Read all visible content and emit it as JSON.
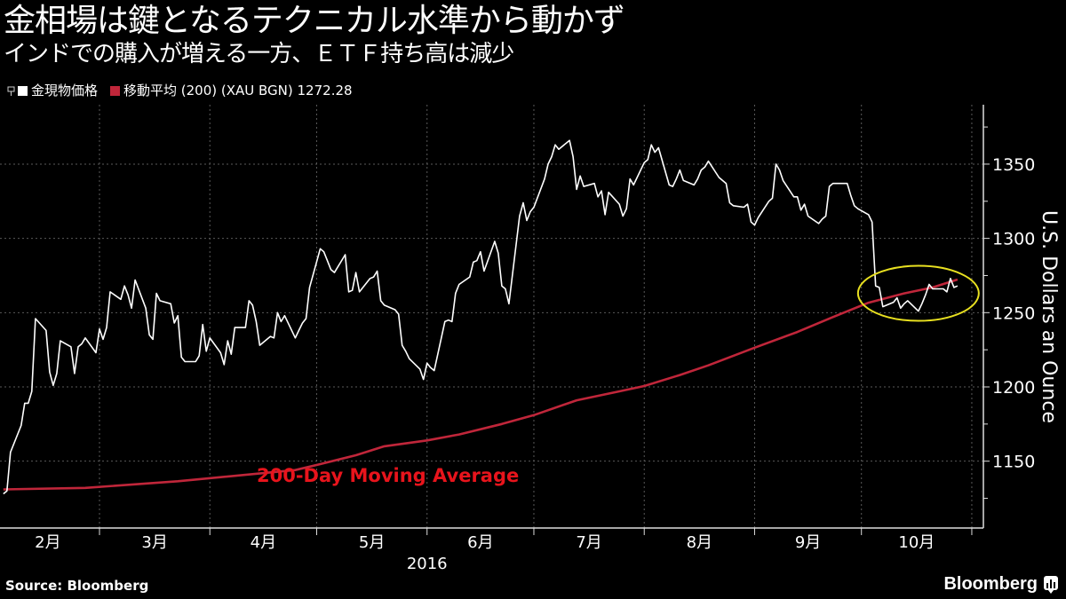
{
  "header": {
    "title": "金相場は鍵となるテクニカル水準から動かず",
    "subtitle": "インドでの購入が増える一方、ＥＴＦ持ち高は減少"
  },
  "legend": {
    "items": [
      {
        "label": "金現物価格",
        "color": "#ffffff"
      },
      {
        "label": "移動平均 (200) (XAU BGN) 1272.28",
        "color": "#c0263a"
      }
    ]
  },
  "footer": {
    "source": "Source: Bloomberg",
    "logo": "Bloomberg"
  },
  "chart_data": {
    "type": "line",
    "title": "金相場は鍵となるテクニカル水準から動かず",
    "subtitle": "インドでの購入が増える一方、ＥＴＦ持ち高は減少",
    "xlabel": "2016",
    "ylabel": "U.S. Dollars an Ounce",
    "x_tick_labels": [
      "2月",
      "3月",
      "4月",
      "5月",
      "6月",
      "7月",
      "8月",
      "9月",
      "10月"
    ],
    "y_ticks": [
      1150,
      1200,
      1250,
      1300,
      1350
    ],
    "y_tick_labels": [
      "1150",
      "1200",
      "1250",
      "1300",
      "1350"
    ],
    "ylim": [
      1105,
      1390
    ],
    "xlim": [
      "2016-02-02",
      "2016-11-01"
    ],
    "y_axis_side": "right",
    "grid": true,
    "legend_position": "top-left",
    "background": "#000000",
    "series": [
      {
        "name": "金現物価格",
        "color": "#ffffff",
        "dates": [
          "2016-02-03",
          "2016-02-04",
          "2016-02-05",
          "2016-02-08",
          "2016-02-09",
          "2016-02-10",
          "2016-02-11",
          "2016-02-12",
          "2016-02-15",
          "2016-02-16",
          "2016-02-17",
          "2016-02-18",
          "2016-02-19",
          "2016-02-22",
          "2016-02-23",
          "2016-02-24",
          "2016-02-25",
          "2016-02-26",
          "2016-02-29",
          "2016-03-01",
          "2016-03-02",
          "2016-03-03",
          "2016-03-04",
          "2016-03-07",
          "2016-03-08",
          "2016-03-09",
          "2016-03-10",
          "2016-03-11",
          "2016-03-14",
          "2016-03-15",
          "2016-03-16",
          "2016-03-17",
          "2016-03-18",
          "2016-03-21",
          "2016-03-22",
          "2016-03-23",
          "2016-03-24",
          "2016-03-25",
          "2016-03-28",
          "2016-03-29",
          "2016-03-30",
          "2016-03-31",
          "2016-04-01",
          "2016-04-04",
          "2016-04-05",
          "2016-04-06",
          "2016-04-07",
          "2016-04-08",
          "2016-04-11",
          "2016-04-12",
          "2016-04-13",
          "2016-04-14",
          "2016-04-15",
          "2016-04-18",
          "2016-04-19",
          "2016-04-20",
          "2016-04-21",
          "2016-04-22",
          "2016-04-25",
          "2016-04-26",
          "2016-04-27",
          "2016-04-28",
          "2016-04-29",
          "2016-05-02",
          "2016-05-03",
          "2016-05-04",
          "2016-05-05",
          "2016-05-06",
          "2016-05-09",
          "2016-05-10",
          "2016-05-11",
          "2016-05-12",
          "2016-05-13",
          "2016-05-16",
          "2016-05-17",
          "2016-05-18",
          "2016-05-19",
          "2016-05-20",
          "2016-05-23",
          "2016-05-24",
          "2016-05-25",
          "2016-05-26",
          "2016-05-27",
          "2016-05-30",
          "2016-05-31",
          "2016-06-01",
          "2016-06-02",
          "2016-06-03",
          "2016-06-06",
          "2016-06-07",
          "2016-06-08",
          "2016-06-09",
          "2016-06-10",
          "2016-06-13",
          "2016-06-14",
          "2016-06-15",
          "2016-06-16",
          "2016-06-17",
          "2016-06-20",
          "2016-06-21",
          "2016-06-22",
          "2016-06-23",
          "2016-06-24",
          "2016-06-27",
          "2016-06-28",
          "2016-06-29",
          "2016-06-30",
          "2016-07-01",
          "2016-07-04",
          "2016-07-05",
          "2016-07-06",
          "2016-07-07",
          "2016-07-08",
          "2016-07-11",
          "2016-07-12",
          "2016-07-13",
          "2016-07-14",
          "2016-07-15",
          "2016-07-18",
          "2016-07-19",
          "2016-07-20",
          "2016-07-21",
          "2016-07-22",
          "2016-07-25",
          "2016-07-26",
          "2016-07-27",
          "2016-07-28",
          "2016-07-29",
          "2016-08-01",
          "2016-08-02",
          "2016-08-03",
          "2016-08-04",
          "2016-08-05",
          "2016-08-08",
          "2016-08-09",
          "2016-08-10",
          "2016-08-11",
          "2016-08-12",
          "2016-08-15",
          "2016-08-16",
          "2016-08-17",
          "2016-08-18",
          "2016-08-19",
          "2016-08-22",
          "2016-08-23",
          "2016-08-24",
          "2016-08-25",
          "2016-08-26",
          "2016-08-29",
          "2016-08-30",
          "2016-08-31",
          "2016-09-01",
          "2016-09-02",
          "2016-09-05",
          "2016-09-06",
          "2016-09-07",
          "2016-09-08",
          "2016-09-09",
          "2016-09-12",
          "2016-09-13",
          "2016-09-14",
          "2016-09-15",
          "2016-09-16",
          "2016-09-19",
          "2016-09-20",
          "2016-09-21",
          "2016-09-22",
          "2016-09-23",
          "2016-09-26",
          "2016-09-27",
          "2016-09-28",
          "2016-09-29",
          "2016-09-30",
          "2016-10-03",
          "2016-10-04",
          "2016-10-05",
          "2016-10-06",
          "2016-10-07",
          "2016-10-10",
          "2016-10-11",
          "2016-10-12",
          "2016-10-13",
          "2016-10-14",
          "2016-10-17",
          "2016-10-18",
          "2016-10-19",
          "2016-10-20",
          "2016-10-21",
          "2016-10-24",
          "2016-10-25",
          "2016-10-26",
          "2016-10-27",
          "2016-10-28"
        ],
        "values": [
          1128,
          1130,
          1156,
          1174,
          1189,
          1189,
          1197,
          1246,
          1238,
          1210,
          1201,
          1209,
          1231,
          1227,
          1209,
          1227,
          1229,
          1233,
          1223,
          1239,
          1232,
          1240,
          1264,
          1259,
          1268,
          1262,
          1253,
          1272,
          1253,
          1235,
          1232,
          1263,
          1258,
          1256,
          1243,
          1248,
          1220,
          1217,
          1217,
          1221,
          1242,
          1224,
          1233,
          1223,
          1215,
          1231,
          1222,
          1240,
          1240,
          1258,
          1255,
          1244,
          1228,
          1234,
          1233,
          1250,
          1244,
          1248,
          1233,
          1238,
          1243,
          1246,
          1267,
          1293,
          1291,
          1285,
          1279,
          1277,
          1289,
          1264,
          1265,
          1277,
          1264,
          1273,
          1274,
          1278,
          1258,
          1255,
          1252,
          1249,
          1228,
          1224,
          1219,
          1212,
          1205,
          1216,
          1213,
          1211,
          1244,
          1245,
          1244,
          1263,
          1269,
          1274,
          1284,
          1285,
          1291,
          1278,
          1298,
          1290,
          1268,
          1266,
          1256,
          1315,
          1324,
          1312,
          1318,
          1321,
          1340,
          1350,
          1355,
          1363,
          1360,
          1366,
          1355,
          1333,
          1342,
          1335,
          1337,
          1328,
          1332,
          1316,
          1331,
          1323,
          1315,
          1320,
          1340,
          1336,
          1351,
          1353,
          1363,
          1358,
          1361,
          1336,
          1335,
          1340,
          1346,
          1339,
          1336,
          1340,
          1346,
          1348,
          1352,
          1341,
          1339,
          1337,
          1324,
          1322,
          1321,
          1323,
          1311,
          1309,
          1314,
          1325,
          1327,
          1350,
          1346,
          1339,
          1328,
          1328,
          1319,
          1323,
          1315,
          1310,
          1313,
          1315,
          1335,
          1337,
          1337,
          1337,
          1329,
          1322,
          1320,
          1316,
          1311,
          1268,
          1267,
          1254,
          1257,
          1260,
          1253,
          1256,
          1258,
          1251,
          1256,
          1262,
          1269,
          1266,
          1266,
          1264,
          1273,
          1267,
          1268
        ]
      },
      {
        "name": "移動平均 (200) (XAU BGN)",
        "color": "#c0263a",
        "dates": [
          "2016-02-03",
          "2016-02-26",
          "2016-03-23",
          "2016-04-25",
          "2016-05-02",
          "2016-05-12",
          "2016-05-20",
          "2016-06-01",
          "2016-06-10",
          "2016-06-22",
          "2016-07-01",
          "2016-07-13",
          "2016-07-25",
          "2016-08-01",
          "2016-08-11",
          "2016-08-19",
          "2016-09-01",
          "2016-09-13",
          "2016-09-23",
          "2016-10-03",
          "2016-10-13",
          "2016-10-21",
          "2016-10-28"
        ],
        "values": [
          1131,
          1132,
          1136.5,
          1144,
          1148,
          1154,
          1160,
          1164,
          1168,
          1175,
          1181,
          1191,
          1197,
          1200.6,
          1208,
          1214.5,
          1226.4,
          1237,
          1247,
          1256.7,
          1263,
          1267,
          1272.28
        ]
      }
    ],
    "annotations": [
      {
        "type": "text",
        "text": "200-Day Moving Average",
        "color": "#e8141c",
        "x": "2016-05-21",
        "y": 1136
      },
      {
        "type": "ellipse",
        "color": "#e8e020",
        "x": "2016-10-17",
        "y": 1263
      }
    ]
  }
}
